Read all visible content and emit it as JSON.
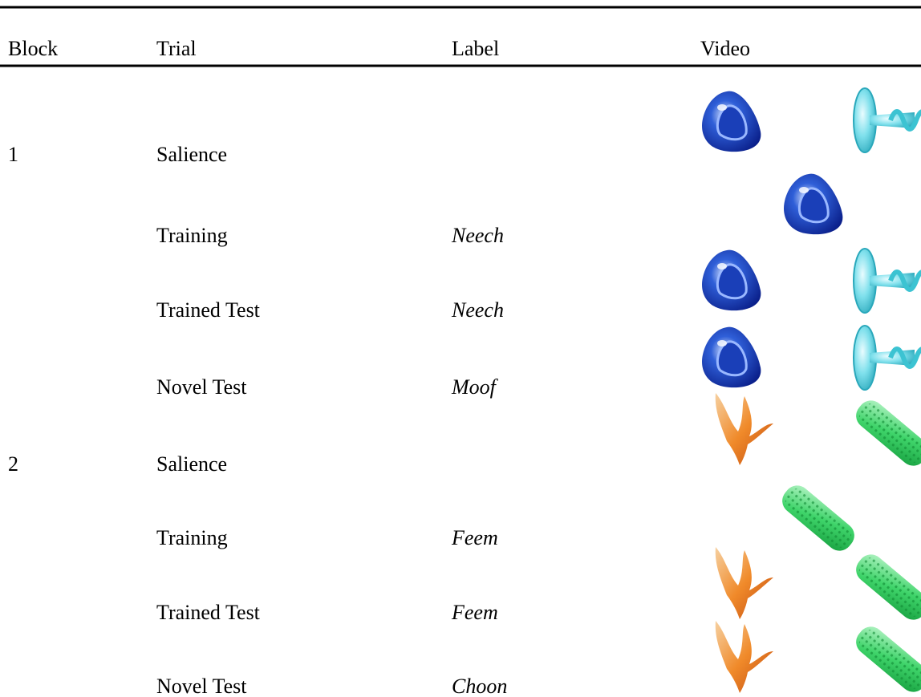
{
  "table": {
    "columns": [
      "Block",
      "Trial",
      "Label",
      "Video"
    ],
    "rows": [
      {
        "block": "1",
        "trial": "Salience"
      },
      {
        "trial": "Training",
        "label": "Neech"
      },
      {
        "trial": "Trained Test",
        "label": "Neech"
      },
      {
        "trial": "Novel Test",
        "label": "Moof"
      },
      {
        "block": "2",
        "trial": "Salience"
      },
      {
        "trial": "Training",
        "label": "Feem"
      },
      {
        "trial": "Trained Test",
        "label": "Feem"
      },
      {
        "trial": "Novel Test",
        "label": "Choon"
      }
    ]
  }
}
